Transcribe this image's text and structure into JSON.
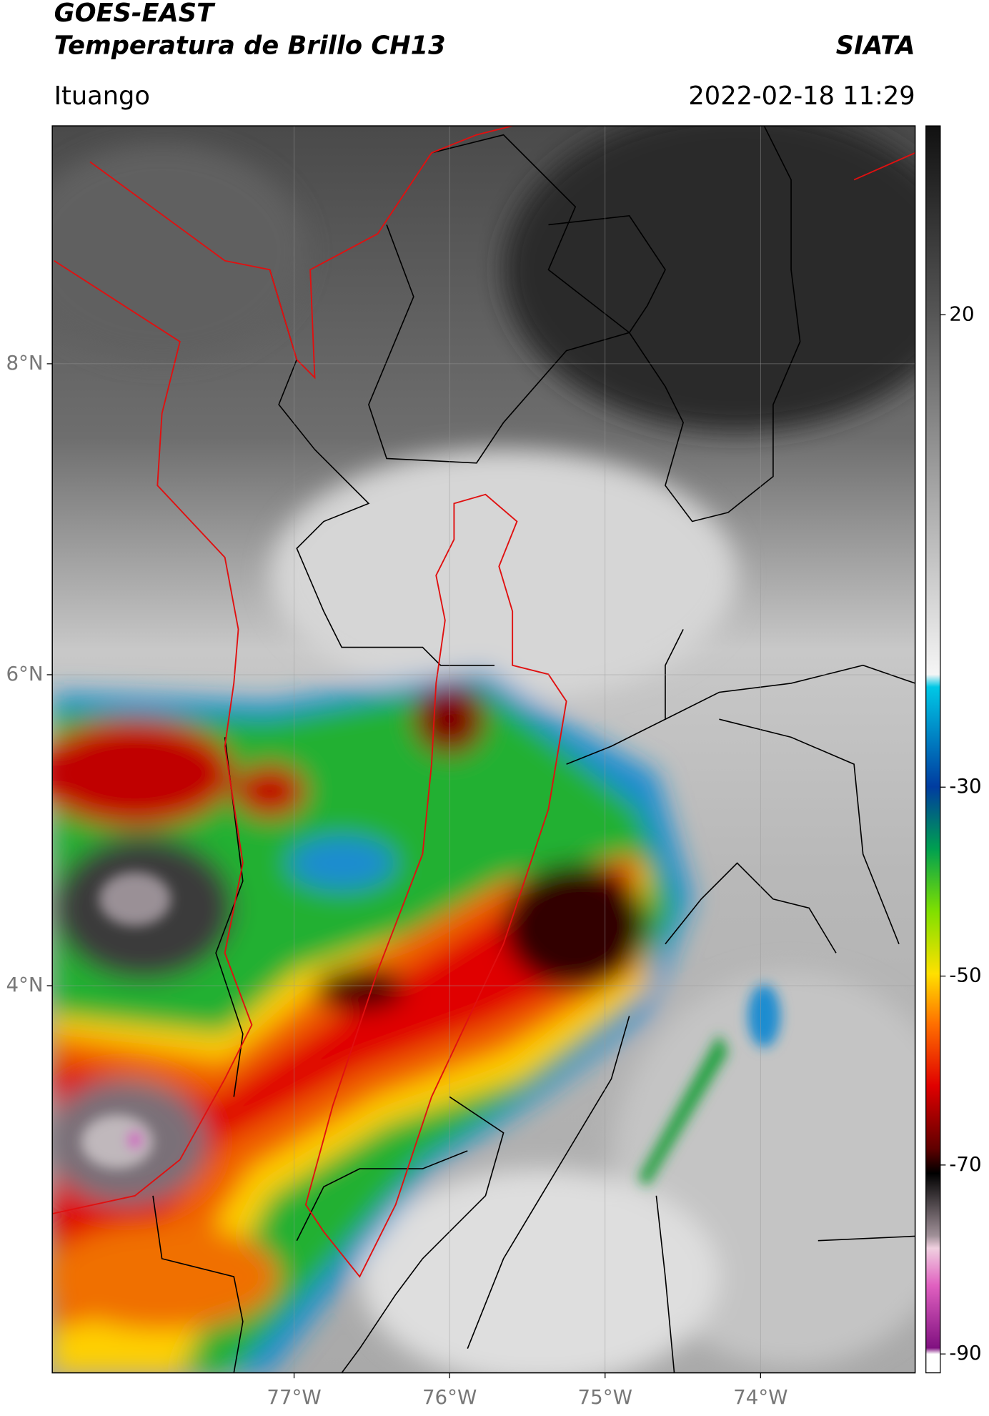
{
  "header": {
    "title": "GOES-EAST",
    "subtitle": "Temperatura de Brillo CH13",
    "source": "SIATA",
    "region": "Ituango",
    "datetime": "2022-02-18 11:29"
  },
  "map": {
    "lon_lim": [
      -78.555,
      -73.006
    ],
    "lat_lim": [
      1.51,
      9.53
    ],
    "lat_ticks": [
      {
        "value": 8,
        "label": "8°N"
      },
      {
        "value": 6,
        "label": "6°N"
      },
      {
        "value": 4,
        "label": "4°N"
      }
    ],
    "lon_ticks": [
      {
        "value": -77,
        "label": "77°W"
      },
      {
        "value": -76,
        "label": "76°W"
      },
      {
        "value": -75,
        "label": "75°W"
      },
      {
        "value": -74,
        "label": "74°W"
      }
    ],
    "grid": true
  },
  "colorbar": {
    "lim": [
      -92,
      40
    ],
    "ticks": [
      20,
      -30,
      -50,
      -70,
      -90
    ]
  }
}
